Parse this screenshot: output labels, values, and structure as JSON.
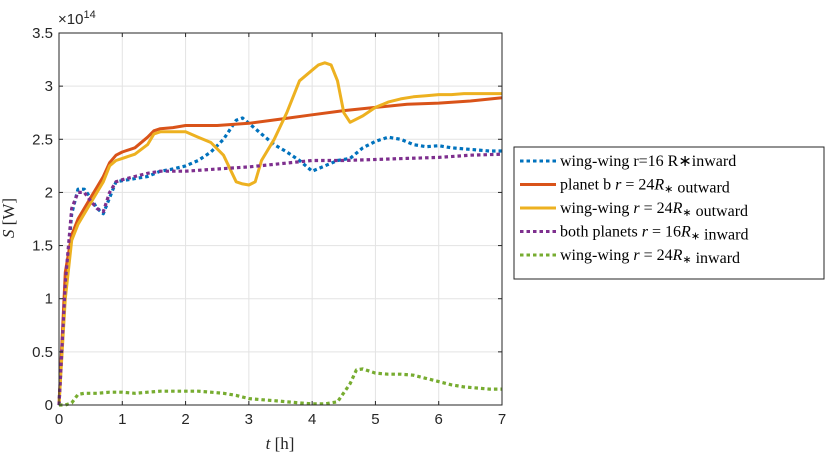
{
  "chart_data": {
    "type": "line",
    "xlabel": "t [h]",
    "ylabel": "S [W]",
    "exponent_label": "×10^14",
    "xlim": [
      0,
      7
    ],
    "ylim": [
      0,
      3.5
    ],
    "x_ticks": [
      "0",
      "1",
      "2",
      "3",
      "4",
      "5",
      "6",
      "7"
    ],
    "y_ticks": [
      "0",
      "0.5",
      "1",
      "1.5",
      "2",
      "2.5",
      "3",
      "3.5"
    ],
    "grid": true,
    "legend_position": "outside-right",
    "series": [
      {
        "name": "wing-wing r=16 R∗inward",
        "color": "#0072BD",
        "style": "dotted",
        "x": [
          0,
          0.1,
          0.2,
          0.3,
          0.4,
          0.5,
          0.6,
          0.7,
          0.8,
          0.9,
          1.0,
          1.2,
          1.4,
          1.6,
          1.8,
          2.0,
          2.2,
          2.4,
          2.6,
          2.8,
          2.9,
          3.0,
          3.2,
          3.4,
          3.6,
          3.8,
          4.0,
          4.2,
          4.4,
          4.6,
          4.8,
          5.0,
          5.2,
          5.4,
          5.6,
          5.8,
          6.0,
          6.2,
          6.4,
          6.6,
          6.8,
          7.0
        ],
        "y": [
          0,
          1.1,
          1.8,
          2.03,
          2.03,
          1.95,
          1.85,
          1.8,
          1.95,
          2.1,
          2.11,
          2.13,
          2.15,
          2.2,
          2.22,
          2.25,
          2.3,
          2.38,
          2.5,
          2.68,
          2.7,
          2.65,
          2.55,
          2.45,
          2.38,
          2.3,
          2.2,
          2.25,
          2.3,
          2.32,
          2.42,
          2.48,
          2.52,
          2.5,
          2.45,
          2.43,
          2.44,
          2.42,
          2.41,
          2.4,
          2.39,
          2.39
        ]
      },
      {
        "name": "planet b r = 24R∗ outward",
        "color": "#D95319",
        "style": "solid",
        "x": [
          0,
          0.1,
          0.2,
          0.3,
          0.4,
          0.5,
          0.6,
          0.7,
          0.8,
          0.9,
          1.0,
          1.2,
          1.4,
          1.5,
          1.6,
          1.8,
          2.0,
          2.5,
          3.0,
          3.5,
          4.0,
          4.5,
          5.0,
          5.5,
          6.0,
          6.5,
          7.0
        ],
        "y": [
          0,
          1.25,
          1.6,
          1.75,
          1.85,
          1.95,
          2.05,
          2.15,
          2.28,
          2.35,
          2.38,
          2.42,
          2.52,
          2.58,
          2.6,
          2.61,
          2.63,
          2.63,
          2.65,
          2.69,
          2.73,
          2.77,
          2.8,
          2.83,
          2.84,
          2.86,
          2.89
        ]
      },
      {
        "name": "wing-wing r = 24R∗ outward",
        "color": "#EDB120",
        "style": "solid",
        "x": [
          0,
          0.1,
          0.2,
          0.3,
          0.4,
          0.5,
          0.6,
          0.7,
          0.8,
          0.9,
          1.0,
          1.2,
          1.4,
          1.5,
          1.6,
          1.8,
          2.0,
          2.2,
          2.4,
          2.6,
          2.8,
          2.9,
          3.0,
          3.1,
          3.2,
          3.4,
          3.6,
          3.8,
          4.0,
          4.1,
          4.2,
          4.3,
          4.4,
          4.5,
          4.6,
          4.8,
          5.0,
          5.2,
          5.4,
          5.6,
          5.8,
          6.0,
          6.2,
          6.4,
          6.6,
          6.8,
          7.0
        ],
        "y": [
          0,
          1.0,
          1.55,
          1.7,
          1.8,
          1.9,
          2.0,
          2.1,
          2.25,
          2.3,
          2.32,
          2.36,
          2.45,
          2.55,
          2.57,
          2.57,
          2.57,
          2.52,
          2.47,
          2.35,
          2.1,
          2.08,
          2.07,
          2.1,
          2.3,
          2.5,
          2.75,
          3.05,
          3.15,
          3.2,
          3.22,
          3.2,
          3.05,
          2.75,
          2.66,
          2.72,
          2.8,
          2.85,
          2.88,
          2.9,
          2.91,
          2.92,
          2.92,
          2.93,
          2.93,
          2.93,
          2.93
        ]
      },
      {
        "name": "both planets r = 16R∗ inward",
        "color": "#7E2F8E",
        "style": "dotted",
        "x": [
          0,
          0.1,
          0.2,
          0.3,
          0.4,
          0.5,
          0.6,
          0.7,
          0.8,
          0.9,
          1.0,
          1.2,
          1.4,
          1.6,
          2.0,
          2.5,
          3.0,
          3.5,
          4.0,
          4.5,
          5.0,
          5.5,
          6.0,
          6.5,
          7.0
        ],
        "y": [
          0,
          1.15,
          1.85,
          2.0,
          2.0,
          1.92,
          1.85,
          1.82,
          2.0,
          2.1,
          2.12,
          2.15,
          2.18,
          2.2,
          2.2,
          2.22,
          2.24,
          2.27,
          2.3,
          2.3,
          2.31,
          2.32,
          2.33,
          2.35,
          2.36
        ]
      },
      {
        "name": "wing-wing r = 24R∗ inward",
        "color": "#77AC30",
        "style": "dotted",
        "x": [
          0,
          0.1,
          0.2,
          0.3,
          0.4,
          0.6,
          0.8,
          1.0,
          1.2,
          1.4,
          1.6,
          1.8,
          2.0,
          2.2,
          2.4,
          2.6,
          2.8,
          3.0,
          3.2,
          3.4,
          3.6,
          3.8,
          4.0,
          4.2,
          4.4,
          4.6,
          4.7,
          4.8,
          5.0,
          5.2,
          5.4,
          5.6,
          5.8,
          6.0,
          6.2,
          6.4,
          6.6,
          6.8,
          7.0
        ],
        "y": [
          0,
          0.0,
          0.02,
          0.1,
          0.11,
          0.11,
          0.12,
          0.12,
          0.11,
          0.12,
          0.13,
          0.13,
          0.13,
          0.13,
          0.12,
          0.11,
          0.09,
          0.06,
          0.05,
          0.04,
          0.03,
          0.02,
          0.01,
          0.01,
          0.03,
          0.2,
          0.33,
          0.34,
          0.3,
          0.29,
          0.29,
          0.28,
          0.25,
          0.22,
          0.19,
          0.17,
          0.16,
          0.15,
          0.15
        ]
      }
    ]
  }
}
